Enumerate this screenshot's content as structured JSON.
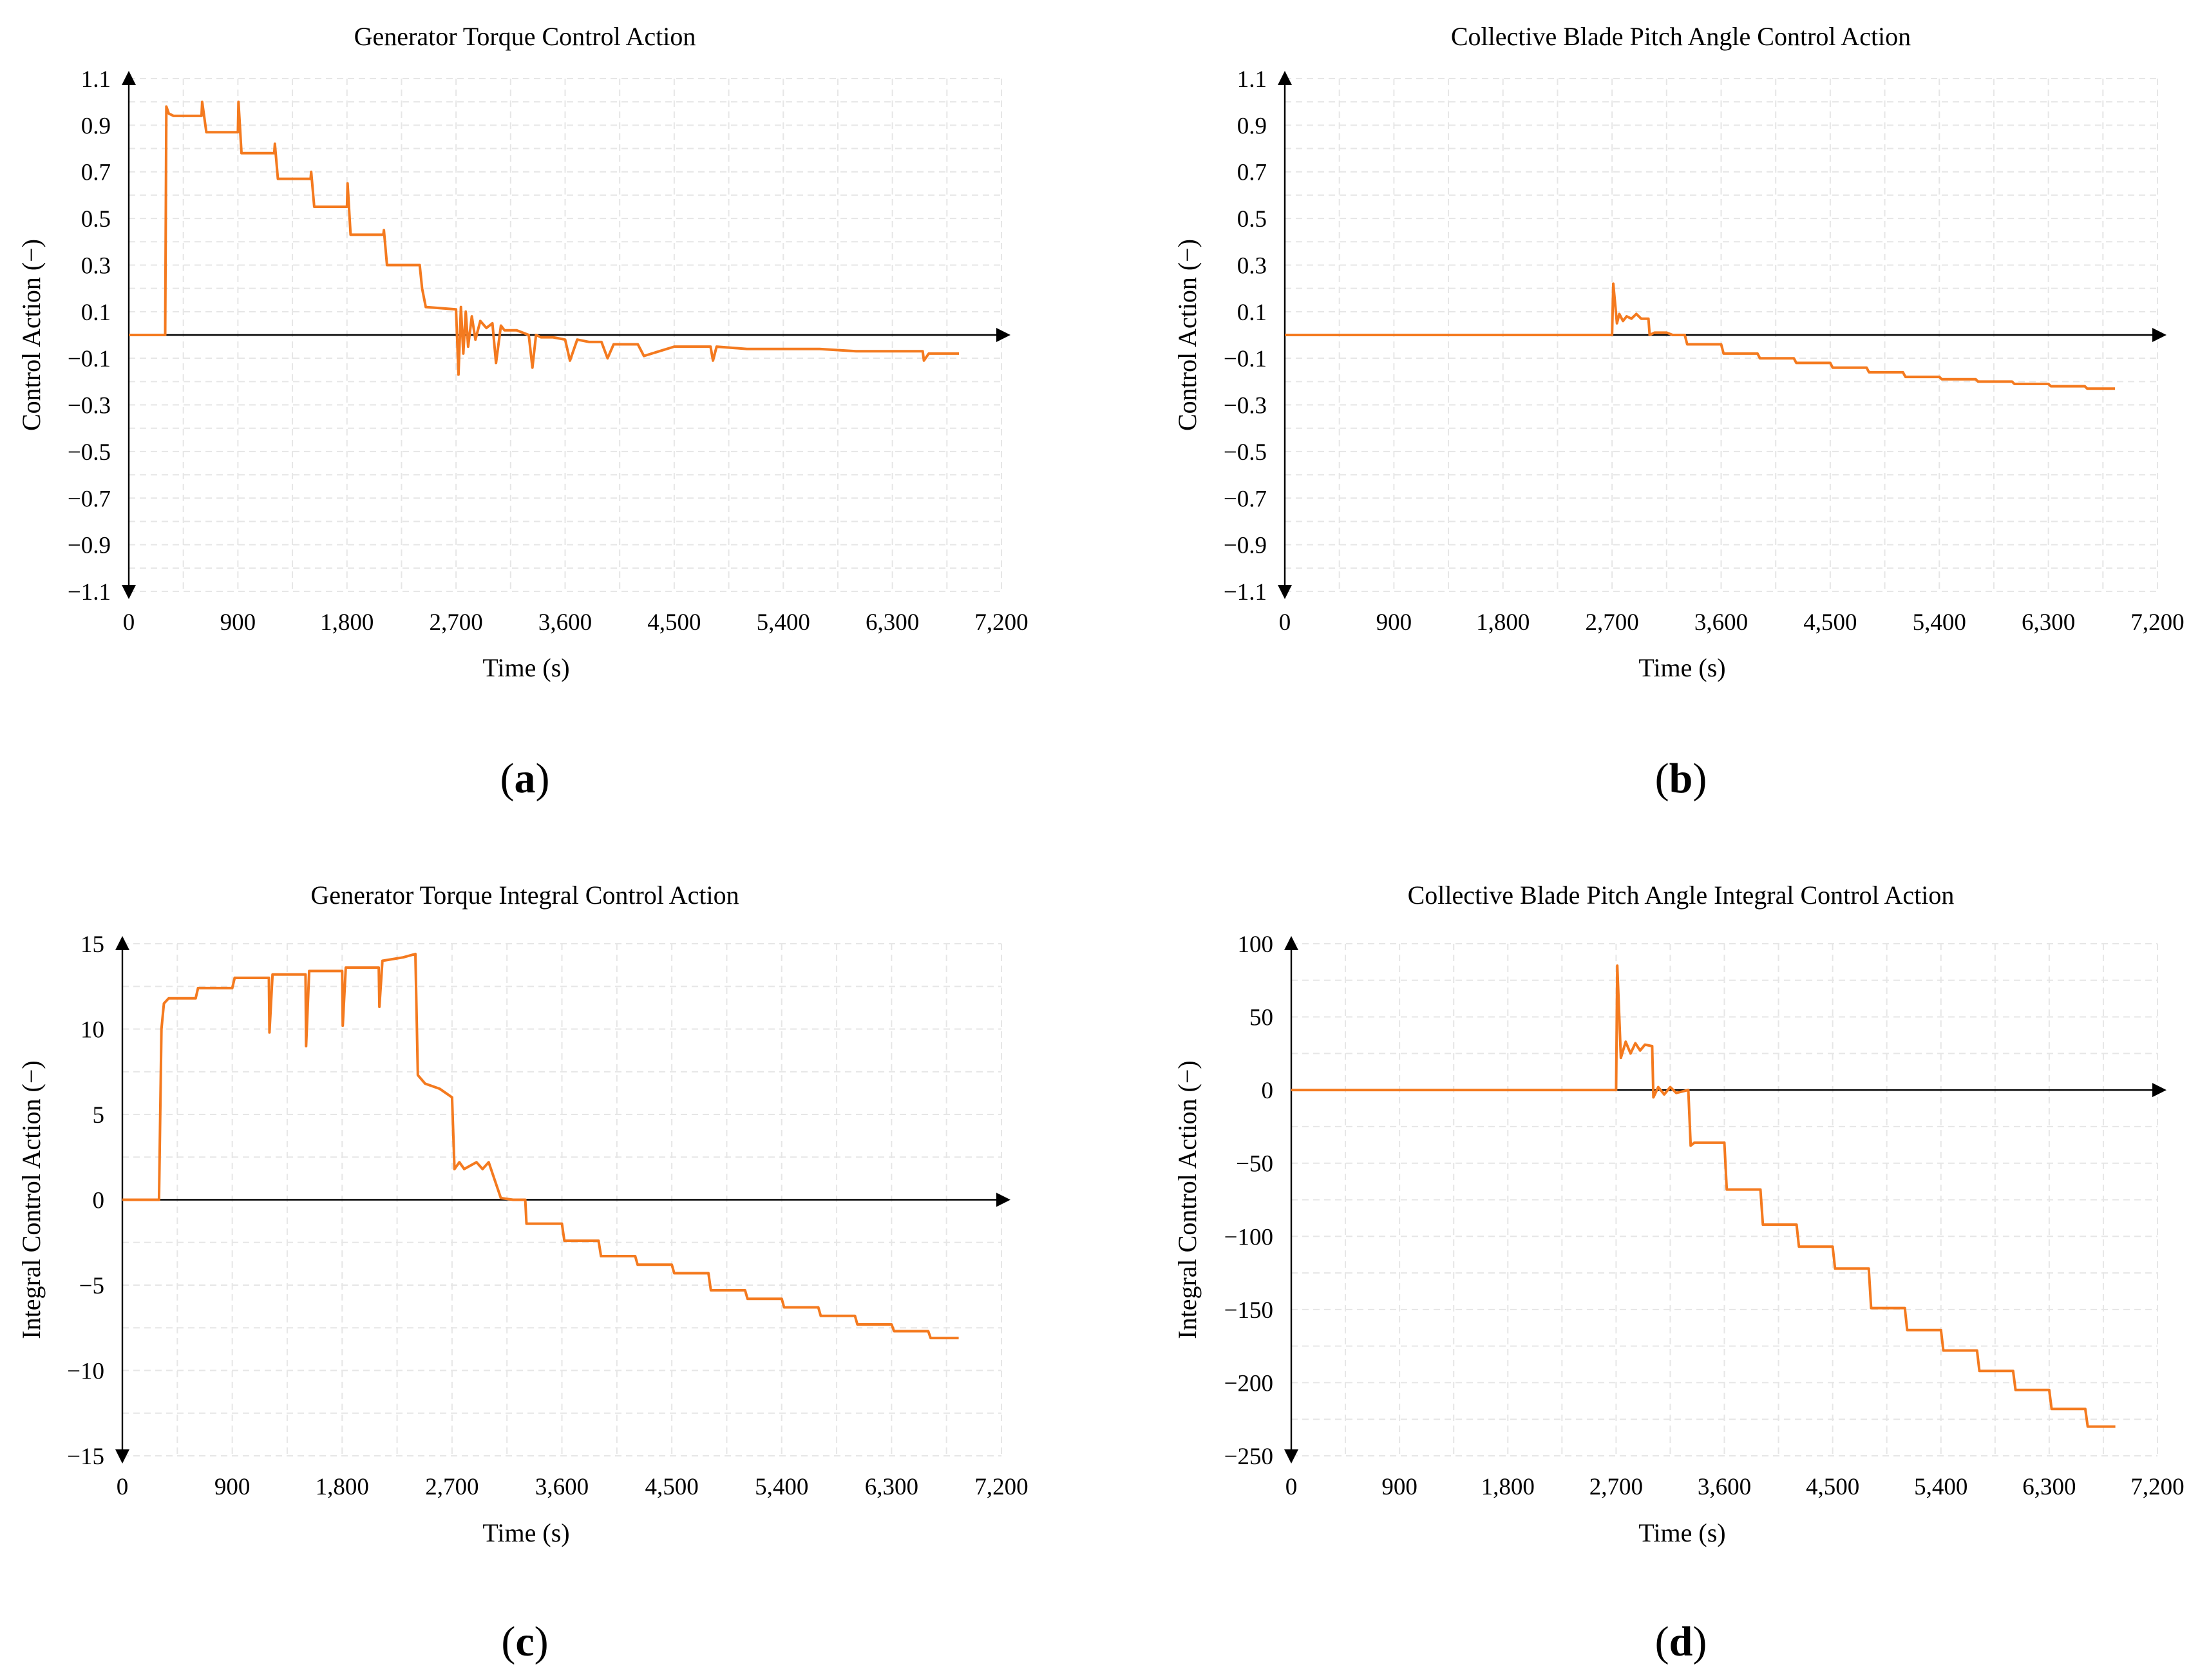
{
  "charts": [
    {
      "id": "a",
      "panel_label": "a",
      "title": "Generator Torque Control Action",
      "xlabel": "Time (s)",
      "ylabel": "Control Action (−)",
      "xticks": [
        "0",
        "900",
        "1,800",
        "2,700",
        "3,600",
        "4,500",
        "5,400",
        "6,300",
        "7,200"
      ],
      "yticks": [
        "1.1",
        "0.9",
        "0.7",
        "0.5",
        "0.3",
        "0.1",
        "−0.1",
        "−0.3",
        "−0.5",
        "−0.7",
        "−0.9",
        "−1.1"
      ],
      "series_color": "#f47a1f"
    },
    {
      "id": "b",
      "panel_label": "b",
      "title": "Collective Blade Pitch Angle Control Action",
      "xlabel": "Time (s)",
      "ylabel": "Control Action (−)",
      "xticks": [
        "0",
        "900",
        "1,800",
        "2,700",
        "3,600",
        "4,500",
        "5,400",
        "6,300",
        "7,200"
      ],
      "yticks": [
        "1.1",
        "0.9",
        "0.7",
        "0.5",
        "0.3",
        "0.1",
        "−0.1",
        "−0.3",
        "−0.5",
        "−0.7",
        "−0.9",
        "−1.1"
      ],
      "series_color": "#f47a1f"
    },
    {
      "id": "c",
      "panel_label": "c",
      "title": "Generator Torque Integral Control Action",
      "xlabel": "Time (s)",
      "ylabel": "Integral Control Action (−)",
      "xticks": [
        "0",
        "900",
        "1,800",
        "2,700",
        "3,600",
        "4,500",
        "5,400",
        "6,300",
        "7,200"
      ],
      "yticks": [
        "15",
        "10",
        "5",
        "0",
        "−5",
        "−10",
        "−15"
      ],
      "series_color": "#f47a1f"
    },
    {
      "id": "d",
      "panel_label": "d",
      "title": "Collective Blade Pitch Angle Integral Control Action",
      "xlabel": "Time (s)",
      "ylabel": "Integral Control Action (−)",
      "xticks": [
        "0",
        "900",
        "1,800",
        "2,700",
        "3,600",
        "4,500",
        "5,400",
        "6,300",
        "7,200"
      ],
      "yticks": [
        "100",
        "50",
        "0",
        "−50",
        "−100",
        "−150",
        "−200",
        "−250"
      ],
      "series_color": "#f47a1f"
    }
  ],
  "chart_data": [
    {
      "type": "line",
      "title": "Generator Torque Control Action",
      "xlabel": "Time (s)",
      "ylabel": "Control Action (−)",
      "xlim": [
        0,
        7200
      ],
      "ylim": [
        -1.1,
        1.1
      ],
      "series": [
        {
          "name": "Generator torque control action",
          "x": [
            0,
            300,
            310,
            330,
            370,
            600,
            605,
            640,
            900,
            905,
            930,
            1200,
            1205,
            1230,
            1500,
            1505,
            1530,
            1800,
            1805,
            1830,
            2100,
            2105,
            2130,
            2400,
            2420,
            2450,
            2700,
            2720,
            2740,
            2760,
            2780,
            2800,
            2830,
            2860,
            2900,
            2950,
            3000,
            3030,
            3070,
            3100,
            3200,
            3300,
            3330,
            3360,
            3400,
            3500,
            3600,
            3640,
            3700,
            3800,
            3900,
            3950,
            4000,
            4200,
            4250,
            4500,
            4800,
            4820,
            4850,
            5100,
            5400,
            5700,
            6000,
            6300,
            6550,
            6560,
            6600,
            6850
          ],
          "y": [
            0,
            0,
            0.98,
            0.95,
            0.94,
            0.94,
            1.0,
            0.87,
            0.87,
            1.0,
            0.78,
            0.78,
            0.82,
            0.67,
            0.67,
            0.7,
            0.55,
            0.55,
            0.65,
            0.43,
            0.43,
            0.45,
            0.3,
            0.3,
            0.2,
            0.12,
            0.11,
            -0.17,
            0.12,
            -0.08,
            0.1,
            -0.05,
            0.08,
            -0.02,
            0.06,
            0.03,
            0.05,
            -0.12,
            0.04,
            0.02,
            0.02,
            0.0,
            -0.14,
            0.0,
            -0.01,
            -0.01,
            -0.02,
            -0.11,
            -0.02,
            -0.03,
            -0.03,
            -0.1,
            -0.04,
            -0.04,
            -0.09,
            -0.05,
            -0.05,
            -0.11,
            -0.05,
            -0.06,
            -0.06,
            -0.06,
            -0.07,
            -0.07,
            -0.07,
            -0.11,
            -0.08,
            -0.08
          ]
        }
      ]
    },
    {
      "type": "line",
      "title": "Collective Blade Pitch Angle Control Action",
      "xlabel": "Time (s)",
      "ylabel": "Control Action (−)",
      "xlim": [
        0,
        7200
      ],
      "ylim": [
        -1.1,
        1.1
      ],
      "series": [
        {
          "name": "Collective blade pitch angle control action",
          "x": [
            0,
            2700,
            2710,
            2740,
            2760,
            2790,
            2820,
            2860,
            2900,
            2940,
            3000,
            3010,
            3050,
            3100,
            3150,
            3200,
            3300,
            3320,
            3600,
            3620,
            3900,
            3920,
            4200,
            4220,
            4500,
            4520,
            4800,
            4820,
            5100,
            5120,
            5400,
            5420,
            5700,
            5720,
            6000,
            6020,
            6300,
            6320,
            6600,
            6620,
            6850
          ],
          "y": [
            0,
            0,
            0.22,
            0.05,
            0.09,
            0.06,
            0.08,
            0.07,
            0.09,
            0.07,
            0.07,
            0.0,
            0.01,
            0.01,
            0.01,
            0.0,
            0.0,
            -0.04,
            -0.04,
            -0.08,
            -0.08,
            -0.1,
            -0.1,
            -0.12,
            -0.12,
            -0.14,
            -0.14,
            -0.16,
            -0.16,
            -0.18,
            -0.18,
            -0.19,
            -0.19,
            -0.2,
            -0.2,
            -0.21,
            -0.21,
            -0.22,
            -0.22,
            -0.23,
            -0.23
          ]
        }
      ]
    },
    {
      "type": "line",
      "title": "Generator Torque Integral Control Action",
      "xlabel": "Time (s)",
      "ylabel": "Integral Control Action (−)",
      "xlim": [
        0,
        7200
      ],
      "ylim": [
        -15,
        15
      ],
      "series": [
        {
          "name": "Generator torque integral control action",
          "x": [
            0,
            300,
            320,
            340,
            380,
            600,
            620,
            900,
            920,
            1200,
            1205,
            1230,
            1500,
            1505,
            1530,
            1800,
            1805,
            1830,
            2100,
            2105,
            2130,
            2300,
            2400,
            2420,
            2480,
            2600,
            2700,
            2720,
            2760,
            2800,
            2900,
            2950,
            3000,
            3100,
            3200,
            3300,
            3310,
            3500,
            3600,
            3620,
            3900,
            3920,
            4200,
            4220,
            4500,
            4520,
            4800,
            4820,
            5100,
            5120,
            5400,
            5420,
            5700,
            5720,
            6000,
            6020,
            6300,
            6320,
            6600,
            6620,
            6850
          ],
          "y": [
            0,
            0,
            10,
            11.5,
            11.8,
            11.8,
            12.4,
            12.4,
            13.0,
            13.0,
            9.8,
            13.2,
            13.2,
            9.0,
            13.4,
            13.4,
            10.2,
            13.6,
            13.6,
            11.3,
            14.0,
            14.2,
            14.4,
            7.3,
            6.8,
            6.5,
            6.0,
            1.8,
            2.2,
            1.8,
            2.2,
            1.8,
            2.2,
            0.1,
            0.0,
            0.0,
            -1.4,
            -1.4,
            -1.4,
            -2.4,
            -2.4,
            -3.3,
            -3.3,
            -3.8,
            -3.8,
            -4.3,
            -4.3,
            -5.3,
            -5.3,
            -5.8,
            -5.8,
            -6.3,
            -6.3,
            -6.8,
            -6.8,
            -7.3,
            -7.3,
            -7.7,
            -7.7,
            -8.1,
            -8.1
          ]
        }
      ]
    },
    {
      "type": "line",
      "title": "Collective Blade Pitch Angle Integral Control Action",
      "xlabel": "Time (s)",
      "ylabel": "Integral Control Action (−)",
      "xlim": [
        0,
        7200
      ],
      "ylim": [
        -250,
        100
      ],
      "series": [
        {
          "name": "Collective blade pitch angle integral control action",
          "x": [
            0,
            2700,
            2710,
            2740,
            2780,
            2820,
            2860,
            2900,
            2940,
            3000,
            3010,
            3050,
            3100,
            3150,
            3200,
            3300,
            3320,
            3350,
            3600,
            3620,
            3900,
            3920,
            4200,
            4220,
            4500,
            4520,
            4800,
            4820,
            5100,
            5120,
            5400,
            5420,
            5700,
            5720,
            6000,
            6020,
            6300,
            6320,
            6600,
            6620,
            6850
          ],
          "y": [
            0,
            0,
            85,
            22,
            33,
            25,
            32,
            27,
            31,
            30,
            -5,
            2,
            -3,
            2,
            -2,
            0,
            -38,
            -36,
            -36,
            -68,
            -68,
            -92,
            -92,
            -107,
            -107,
            -122,
            -122,
            -149,
            -149,
            -164,
            -164,
            -178,
            -178,
            -192,
            -192,
            -205,
            -205,
            -218,
            -218,
            -230,
            -230
          ]
        }
      ]
    }
  ]
}
